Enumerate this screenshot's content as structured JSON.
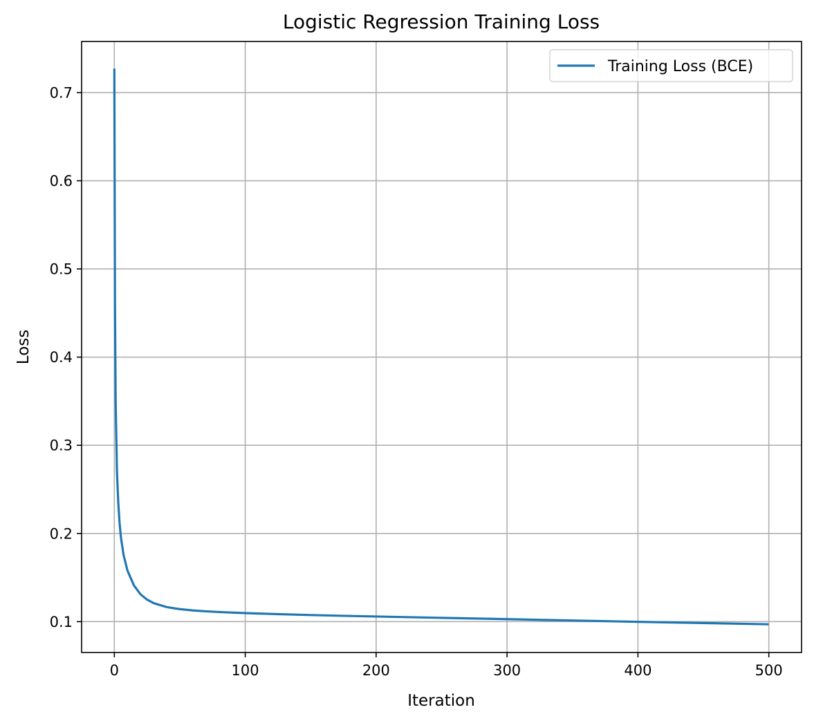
{
  "chart_data": {
    "type": "line",
    "title": "Logistic Regression Training Loss",
    "xlabel": "Iteration",
    "ylabel": "Loss",
    "xlim": [
      -25,
      525
    ],
    "ylim": [
      0.065,
      0.758
    ],
    "xticks": [
      {
        "value": 0,
        "label": "0"
      },
      {
        "value": 100,
        "label": "100"
      },
      {
        "value": 200,
        "label": "200"
      },
      {
        "value": 300,
        "label": "300"
      },
      {
        "value": 400,
        "label": "400"
      },
      {
        "value": 500,
        "label": "500"
      }
    ],
    "yticks": [
      {
        "value": 0.1,
        "label": "0.1"
      },
      {
        "value": 0.2,
        "label": "0.2"
      },
      {
        "value": 0.3,
        "label": "0.3"
      },
      {
        "value": 0.4,
        "label": "0.4"
      },
      {
        "value": 0.5,
        "label": "0.5"
      },
      {
        "value": 0.6,
        "label": "0.6"
      },
      {
        "value": 0.7,
        "label": "0.7"
      }
    ],
    "grid": true,
    "legend_position": "top-right",
    "series": [
      {
        "name": "Training Loss (BCE)",
        "color": "#1f77b4",
        "x": [
          0,
          0.5,
          1,
          2,
          3,
          4,
          5,
          7,
          10,
          15,
          20,
          25,
          30,
          40,
          50,
          60,
          70,
          80,
          100,
          125,
          150,
          175,
          200,
          250,
          300,
          350,
          400,
          450,
          499
        ],
        "y": [
          0.726,
          0.46,
          0.35,
          0.27,
          0.235,
          0.212,
          0.196,
          0.176,
          0.158,
          0.141,
          0.131,
          0.125,
          0.121,
          0.1165,
          0.1142,
          0.1127,
          0.1117,
          0.1109,
          0.1097,
          0.1085,
          0.1075,
          0.1066,
          0.1058,
          0.1043,
          0.1028,
          0.1013,
          0.0998,
          0.0984,
          0.097
        ]
      }
    ]
  }
}
